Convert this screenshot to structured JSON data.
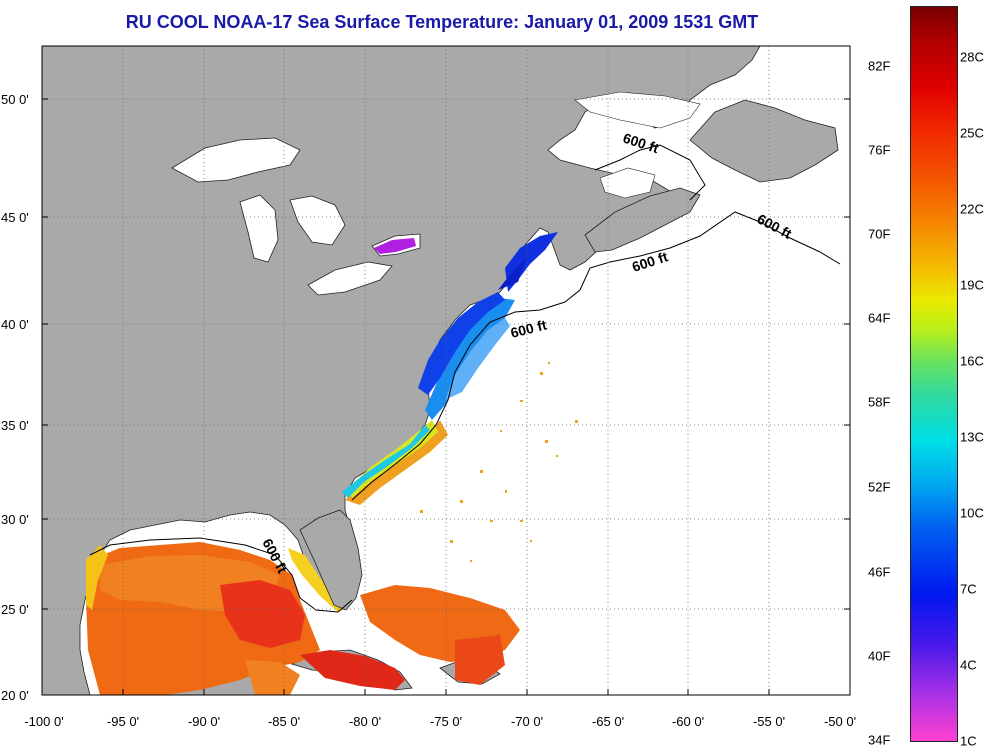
{
  "title": "RU COOL  NOAA-17  Sea Surface Temperature:  January 01, 2009 1531 GMT",
  "map": {
    "lat_ticks": [
      "50 0'",
      "45 0'",
      "40 0'",
      "35 0'",
      "30 0'",
      "25 0'",
      "20 0'"
    ],
    "lon_ticks": [
      "-100 0'",
      "-95 0'",
      "-90 0'",
      "-85 0'",
      "-80 0'",
      "-75 0'",
      "-70 0'",
      "-65 0'",
      "-60 0'",
      "-55 0'",
      "-50 0'"
    ],
    "extent": {
      "lon": [
        -100,
        -50
      ],
      "lat": [
        20,
        52
      ]
    },
    "isobath_labels": [
      "600 ft",
      "600 ft",
      "600 ft",
      "600 ft",
      "600 ft"
    ],
    "land_color": "#a9a9a9",
    "ocean_color": "#ffffff"
  },
  "colorbar": {
    "fahrenheit": [
      "82F",
      "76F",
      "70F",
      "64F",
      "58F",
      "52F",
      "46F",
      "40F",
      "34F"
    ],
    "celsius": [
      "28C",
      "25C",
      "22C",
      "19C",
      "16C",
      "13C",
      "10C",
      "7C",
      "4C",
      "1C"
    ]
  }
}
